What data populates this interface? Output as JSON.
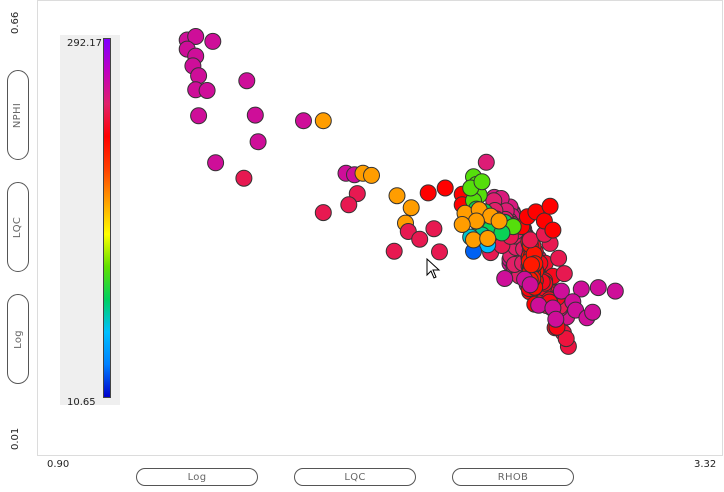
{
  "chart_data": {
    "type": "scatter",
    "xlim": [
      0.9,
      3.32
    ],
    "ylim": [
      0.01,
      0.66
    ],
    "x_tick_labels": [
      "0.90",
      "3.32"
    ],
    "y_tick_labels": [
      "0.01",
      "0.66"
    ],
    "color_scale": {
      "min_label": "10.65",
      "max_label": "292.17",
      "min": 10.65,
      "max": 292.17
    },
    "color_stops": [
      "#0000cc",
      "#0080ff",
      "#00c0ff",
      "#00d060",
      "#60e000",
      "#ffff00",
      "#ffa000",
      "#ff4000",
      "#ff0000",
      "#e0206a",
      "#c000c0",
      "#8000ff"
    ],
    "marker": {
      "stroke": "#333333"
    },
    "points": [
      [
        1.43,
        0.603,
        255
      ],
      [
        1.46,
        0.608,
        255
      ],
      [
        1.52,
        0.601,
        255
      ],
      [
        1.43,
        0.59,
        255
      ],
      [
        1.46,
        0.58,
        255
      ],
      [
        1.45,
        0.566,
        255
      ],
      [
        1.47,
        0.552,
        255
      ],
      [
        1.64,
        0.545,
        255
      ],
      [
        1.46,
        0.532,
        255
      ],
      [
        1.5,
        0.531,
        255
      ],
      [
        1.47,
        0.495,
        255
      ],
      [
        1.67,
        0.496,
        255
      ],
      [
        1.84,
        0.488,
        255
      ],
      [
        1.68,
        0.458,
        255
      ],
      [
        1.53,
        0.428,
        255
      ],
      [
        1.99,
        0.413,
        255
      ],
      [
        2.02,
        0.411,
        255
      ],
      [
        1.63,
        0.406,
        235
      ],
      [
        2.03,
        0.384,
        235
      ],
      [
        2.0,
        0.368,
        235
      ],
      [
        1.91,
        0.357,
        235
      ],
      [
        1.91,
        0.488,
        165
      ],
      [
        2.05,
        0.413,
        165
      ],
      [
        2.08,
        0.41,
        165
      ],
      [
        2.17,
        0.381,
        165
      ],
      [
        2.22,
        0.364,
        165
      ],
      [
        2.2,
        0.342,
        165
      ],
      [
        2.16,
        0.302,
        235
      ],
      [
        2.21,
        0.33,
        235
      ],
      [
        2.3,
        0.334,
        235
      ],
      [
        2.25,
        0.319,
        235
      ],
      [
        2.32,
        0.301,
        235
      ],
      [
        2.5,
        0.3,
        235
      ],
      [
        2.54,
        0.31,
        235
      ],
      [
        2.57,
        0.323,
        235
      ],
      [
        2.64,
        0.318,
        235
      ],
      [
        2.71,
        0.313,
        235
      ],
      [
        2.69,
        0.326,
        235
      ],
      [
        2.58,
        0.337,
        235
      ],
      [
        2.74,
        0.292,
        235
      ],
      [
        2.76,
        0.27,
        235
      ],
      [
        2.28,
        0.385,
        215
      ],
      [
        2.34,
        0.392,
        215
      ],
      [
        2.4,
        0.383,
        215
      ],
      [
        2.47,
        0.359,
        215
      ],
      [
        2.52,
        0.348,
        215
      ],
      [
        2.55,
        0.343,
        215
      ],
      [
        2.61,
        0.337,
        215
      ],
      [
        2.63,
        0.351,
        215
      ],
      [
        2.66,
        0.358,
        215
      ],
      [
        2.69,
        0.345,
        215
      ],
      [
        2.71,
        0.366,
        215
      ],
      [
        2.72,
        0.332,
        215
      ],
      [
        2.44,
        0.352,
        215
      ],
      [
        2.4,
        0.368,
        215
      ],
      [
        2.55,
        0.263,
        255
      ],
      [
        2.62,
        0.262,
        255
      ],
      [
        2.64,
        0.254,
        255
      ],
      [
        2.75,
        0.245,
        255
      ],
      [
        2.82,
        0.248,
        255
      ],
      [
        2.88,
        0.25,
        255
      ],
      [
        2.94,
        0.245,
        255
      ],
      [
        2.79,
        0.23,
        255
      ],
      [
        2.67,
        0.225,
        255
      ],
      [
        2.72,
        0.221,
        255
      ],
      [
        2.8,
        0.218,
        255
      ],
      [
        2.73,
        0.205,
        255
      ],
      [
        2.84,
        0.207,
        255
      ],
      [
        2.86,
        0.215,
        255
      ],
      [
        2.44,
        0.408,
        110
      ],
      [
        2.45,
        0.397,
        110
      ],
      [
        2.46,
        0.382,
        110
      ],
      [
        2.44,
        0.374,
        110
      ],
      [
        2.45,
        0.362,
        90
      ],
      [
        2.48,
        0.358,
        90
      ],
      [
        2.51,
        0.348,
        90
      ],
      [
        2.55,
        0.343,
        90
      ],
      [
        2.46,
        0.34,
        90
      ],
      [
        2.5,
        0.334,
        90
      ],
      [
        2.43,
        0.392,
        110
      ],
      [
        2.47,
        0.401,
        110
      ],
      [
        2.58,
        0.337,
        110
      ],
      [
        2.54,
        0.328,
        90
      ],
      [
        2.47,
        0.325,
        80
      ],
      [
        2.43,
        0.322,
        70
      ],
      [
        2.49,
        0.311,
        60
      ],
      [
        2.44,
        0.302,
        30
      ],
      [
        2.41,
        0.356,
        165
      ],
      [
        2.46,
        0.361,
        165
      ],
      [
        2.5,
        0.352,
        165
      ],
      [
        2.53,
        0.345,
        165
      ],
      [
        2.45,
        0.345,
        165
      ],
      [
        2.4,
        0.34,
        165
      ],
      [
        2.44,
        0.318,
        165
      ],
      [
        2.49,
        0.32,
        165
      ]
    ],
    "cluster": {
      "cx": 2.63,
      "cy": 0.29,
      "sx": 0.09,
      "sy": 0.032,
      "rot": -0.9,
      "n": 320,
      "cmap": [
        [
          -2.0,
          185
        ],
        [
          0.55,
          185
        ],
        [
          1.0,
          220
        ],
        [
          1.6,
          255
        ]
      ]
    }
  }
}
